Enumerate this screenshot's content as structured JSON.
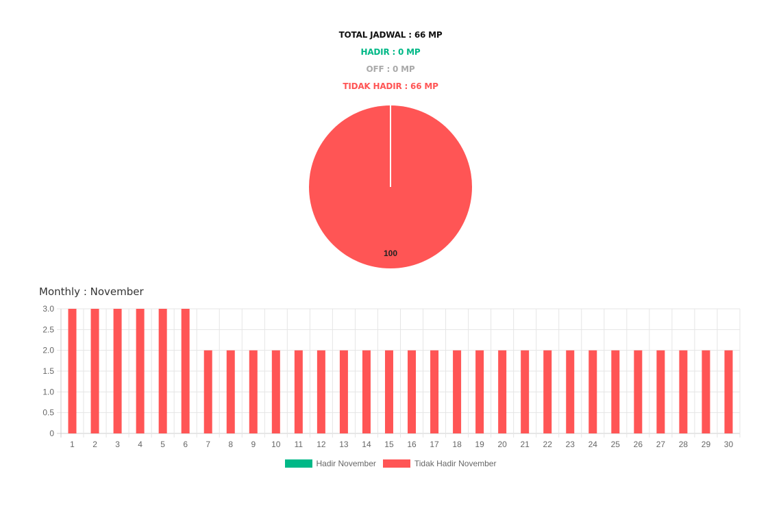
{
  "summary": {
    "total": "TOTAL JADWAL : 66 MP",
    "hadir": "HADIR : 0 MP",
    "off": "OFF : 0 MP",
    "tidak_hadir": "TIDAK HADIR : 66 MP"
  },
  "colors": {
    "total": "#111111",
    "hadir": "#00b887",
    "off": "#aaaaaa",
    "tidak_hadir": "#ff5555",
    "grid": "#e5e5e5",
    "tick": "#666666"
  },
  "monthly_title": "Monthly : November",
  "legend": [
    {
      "label": "Hadir November",
      "color": "#00b887"
    },
    {
      "label": "Tidak Hadir November",
      "color": "#ff5555"
    }
  ],
  "chart_data": [
    {
      "type": "pie",
      "slices": [
        {
          "value": 0,
          "color": "#00b887"
        },
        {
          "value": 0,
          "color": "#aaaaaa"
        },
        {
          "value": 100,
          "color": "#ff5555"
        }
      ],
      "data_labels": [
        "100"
      ]
    },
    {
      "type": "bar",
      "title": "Monthly : November",
      "categories": [
        "1",
        "2",
        "3",
        "4",
        "5",
        "6",
        "7",
        "8",
        "9",
        "10",
        "11",
        "12",
        "13",
        "14",
        "15",
        "16",
        "17",
        "18",
        "19",
        "20",
        "21",
        "22",
        "23",
        "24",
        "25",
        "26",
        "27",
        "28",
        "29",
        "30"
      ],
      "series": [
        {
          "name": "Hadir November",
          "color": "#00b887",
          "values": [
            0,
            0,
            0,
            0,
            0,
            0,
            0,
            0,
            0,
            0,
            0,
            0,
            0,
            0,
            0,
            0,
            0,
            0,
            0,
            0,
            0,
            0,
            0,
            0,
            0,
            0,
            0,
            0,
            0,
            0
          ]
        },
        {
          "name": "Tidak Hadir November",
          "color": "#ff5555",
          "values": [
            3,
            3,
            3,
            3,
            3,
            3,
            2,
            2,
            2,
            2,
            2,
            2,
            2,
            2,
            2,
            2,
            2,
            2,
            2,
            2,
            2,
            2,
            2,
            2,
            2,
            2,
            2,
            2,
            2,
            2
          ]
        }
      ],
      "ylim": [
        0,
        3
      ],
      "yticks": [
        "0",
        "0.5",
        "1.0",
        "1.5",
        "2.0",
        "2.5",
        "3.0"
      ],
      "grid": true,
      "legend_position": "bottom"
    }
  ]
}
